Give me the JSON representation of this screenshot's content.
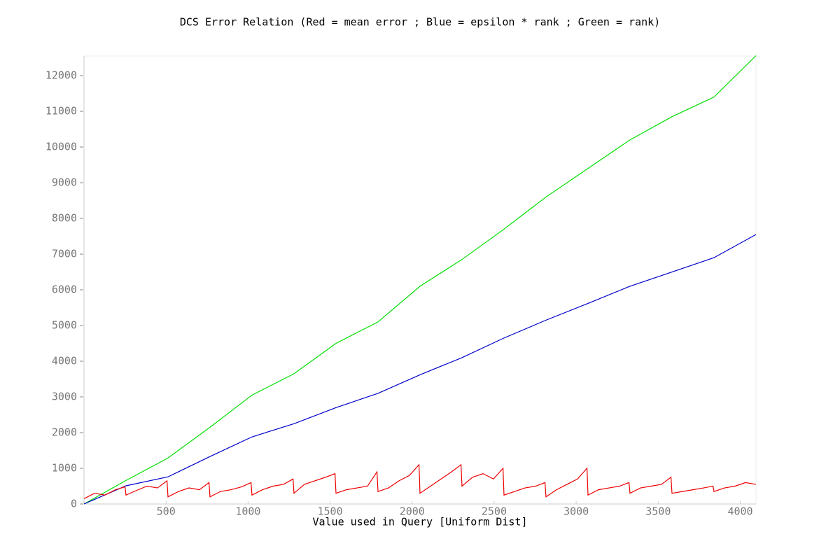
{
  "chart_data": {
    "type": "line",
    "title": "DCS Error Relation (Red = mean error ; Blue = epsilon * rank ; Green = rank)",
    "x_label": "Value used in Query [Uniform Dist]",
    "xlim": [
      0,
      4096
    ],
    "ylim": [
      0,
      12550
    ],
    "xticks": [
      500,
      1000,
      1500,
      2000,
      2500,
      3000,
      3500,
      4000
    ],
    "yticks": [
      0,
      1000,
      2000,
      3000,
      4000,
      5000,
      6000,
      7000,
      8000,
      9000,
      10000,
      11000,
      12000
    ],
    "series": [
      {
        "name": "rank",
        "color": "#00dd00",
        "x": [
          0,
          256,
          512,
          768,
          1024,
          1280,
          1536,
          1792,
          2048,
          2304,
          2560,
          2816,
          3072,
          3328,
          3584,
          3840,
          4096
        ],
        "values": [
          0,
          660,
          1290,
          2150,
          3050,
          3650,
          4500,
          5100,
          6100,
          6850,
          7700,
          8600,
          9400,
          10200,
          10850,
          11400,
          12560
        ]
      },
      {
        "name": "epsilon * rank",
        "color": "#0000cc",
        "x": [
          0,
          256,
          512,
          768,
          1024,
          1280,
          1536,
          1792,
          2048,
          2304,
          2560,
          2816,
          3072,
          3328,
          3584,
          3840,
          4096
        ],
        "values": [
          0,
          510,
          760,
          1330,
          1880,
          2250,
          2700,
          3100,
          3620,
          4100,
          4650,
          5150,
          5620,
          6100,
          6500,
          6900,
          7550
        ]
      },
      {
        "name": "mean error",
        "color": "#ee0000",
        "x": [
          0,
          64,
          128,
          192,
          250,
          256,
          320,
          384,
          448,
          506,
          512,
          576,
          640,
          704,
          762,
          768,
          832,
          896,
          960,
          1018,
          1024,
          1088,
          1152,
          1216,
          1274,
          1280,
          1344,
          1408,
          1472,
          1530,
          1536,
          1600,
          1664,
          1728,
          1786,
          1792,
          1856,
          1920,
          1984,
          2042,
          2048,
          2112,
          2176,
          2240,
          2298,
          2304,
          2368,
          2432,
          2496,
          2554,
          2560,
          2624,
          2688,
          2752,
          2810,
          2816,
          2880,
          2944,
          3008,
          3066,
          3072,
          3136,
          3200,
          3264,
          3322,
          3328,
          3392,
          3456,
          3520,
          3578,
          3584,
          3648,
          3712,
          3776,
          3834,
          3840,
          3904,
          3968,
          4032,
          4096
        ],
        "values": [
          150,
          300,
          250,
          400,
          480,
          250,
          380,
          500,
          450,
          650,
          200,
          350,
          450,
          400,
          600,
          200,
          350,
          400,
          480,
          600,
          250,
          400,
          500,
          550,
          700,
          300,
          550,
          650,
          750,
          850,
          300,
          400,
          450,
          500,
          900,
          350,
          450,
          650,
          800,
          1100,
          300,
          500,
          700,
          900,
          1100,
          500,
          750,
          850,
          700,
          1000,
          250,
          350,
          450,
          500,
          600,
          200,
          400,
          550,
          700,
          1000,
          250,
          400,
          450,
          500,
          600,
          300,
          450,
          500,
          550,
          750,
          300,
          350,
          400,
          450,
          500,
          350,
          450,
          500,
          600,
          550
        ]
      }
    ]
  }
}
